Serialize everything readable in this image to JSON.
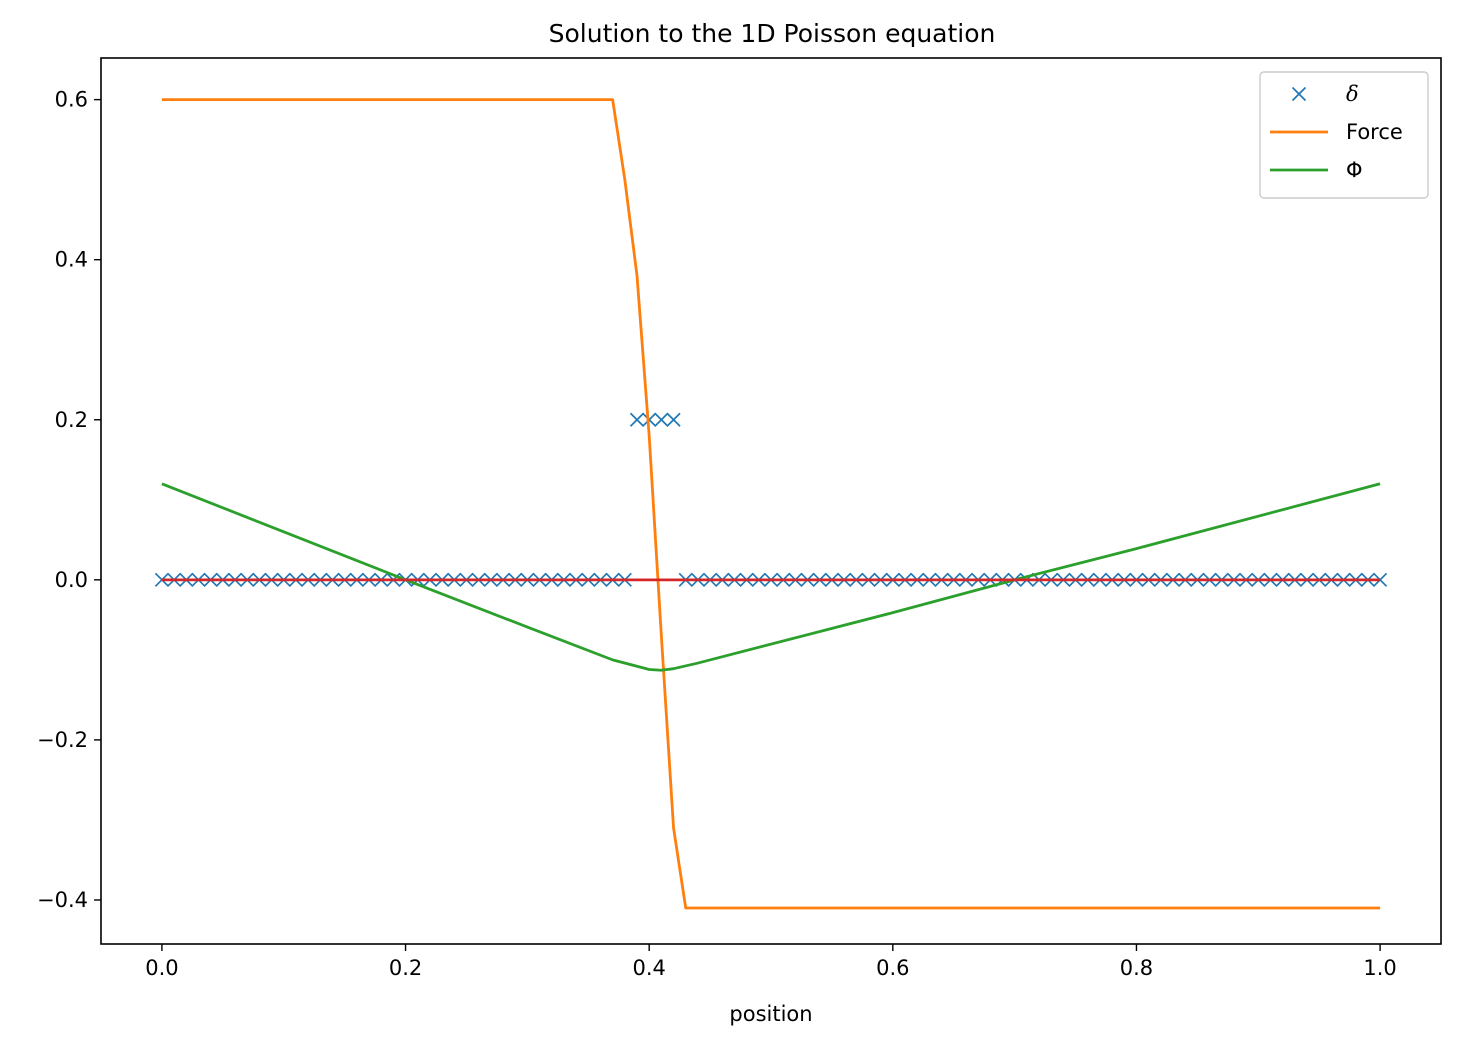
{
  "chart_data": {
    "type": "line",
    "title": "Solution to the 1D Poisson equation",
    "xlabel": "position",
    "ylabel": "",
    "xlim": [
      -0.05,
      1.05
    ],
    "ylim": [
      -0.455,
      0.652
    ],
    "x_ticks": [
      0.0,
      0.2,
      0.4,
      0.6,
      0.8,
      1.0
    ],
    "x_tick_labels": [
      "0.0",
      "0.2",
      "0.4",
      "0.6",
      "0.8",
      "1.0"
    ],
    "y_ticks": [
      -0.4,
      -0.2,
      0.0,
      0.2,
      0.4,
      0.6
    ],
    "y_tick_labels": [
      "−0.4",
      "−0.2",
      "0.0",
      "0.2",
      "0.4",
      "0.6"
    ],
    "grid": false,
    "legend_position": "top-right",
    "series": [
      {
        "name": "δ",
        "style": "markers-x",
        "color": "#1f77b4",
        "n_points": 101,
        "x_range": [
          0,
          1
        ],
        "nonzero_x": [
          0.39,
          0.4,
          0.41,
          0.42
        ],
        "nonzero_value": 0.2,
        "base_value": 0.0
      },
      {
        "name": "Force",
        "style": "line",
        "color": "#ff7f0e",
        "x": [
          0.0,
          0.37,
          0.38,
          0.39,
          0.4,
          0.41,
          0.42,
          0.43,
          1.0
        ],
        "y": [
          0.6,
          0.6,
          0.5,
          0.38,
          0.18,
          -0.07,
          -0.31,
          -0.41,
          -0.41
        ]
      },
      {
        "name": "Φ",
        "style": "line",
        "color": "#2ca02c",
        "x": [
          0.0,
          0.1,
          0.2,
          0.3,
          0.37,
          0.39,
          0.4,
          0.41,
          0.42,
          0.44,
          0.6,
          0.7,
          0.8,
          1.0
        ],
        "y": [
          0.12,
          0.06,
          0.0,
          -0.059,
          -0.1,
          -0.108,
          -0.112,
          -0.113,
          -0.111,
          -0.104,
          -0.041,
          0.0,
          0.039,
          0.12
        ]
      },
      {
        "style": "line",
        "color": "#d62728",
        "x": [
          0.0,
          1.0
        ],
        "y": [
          0.0,
          0.0
        ]
      }
    ]
  }
}
